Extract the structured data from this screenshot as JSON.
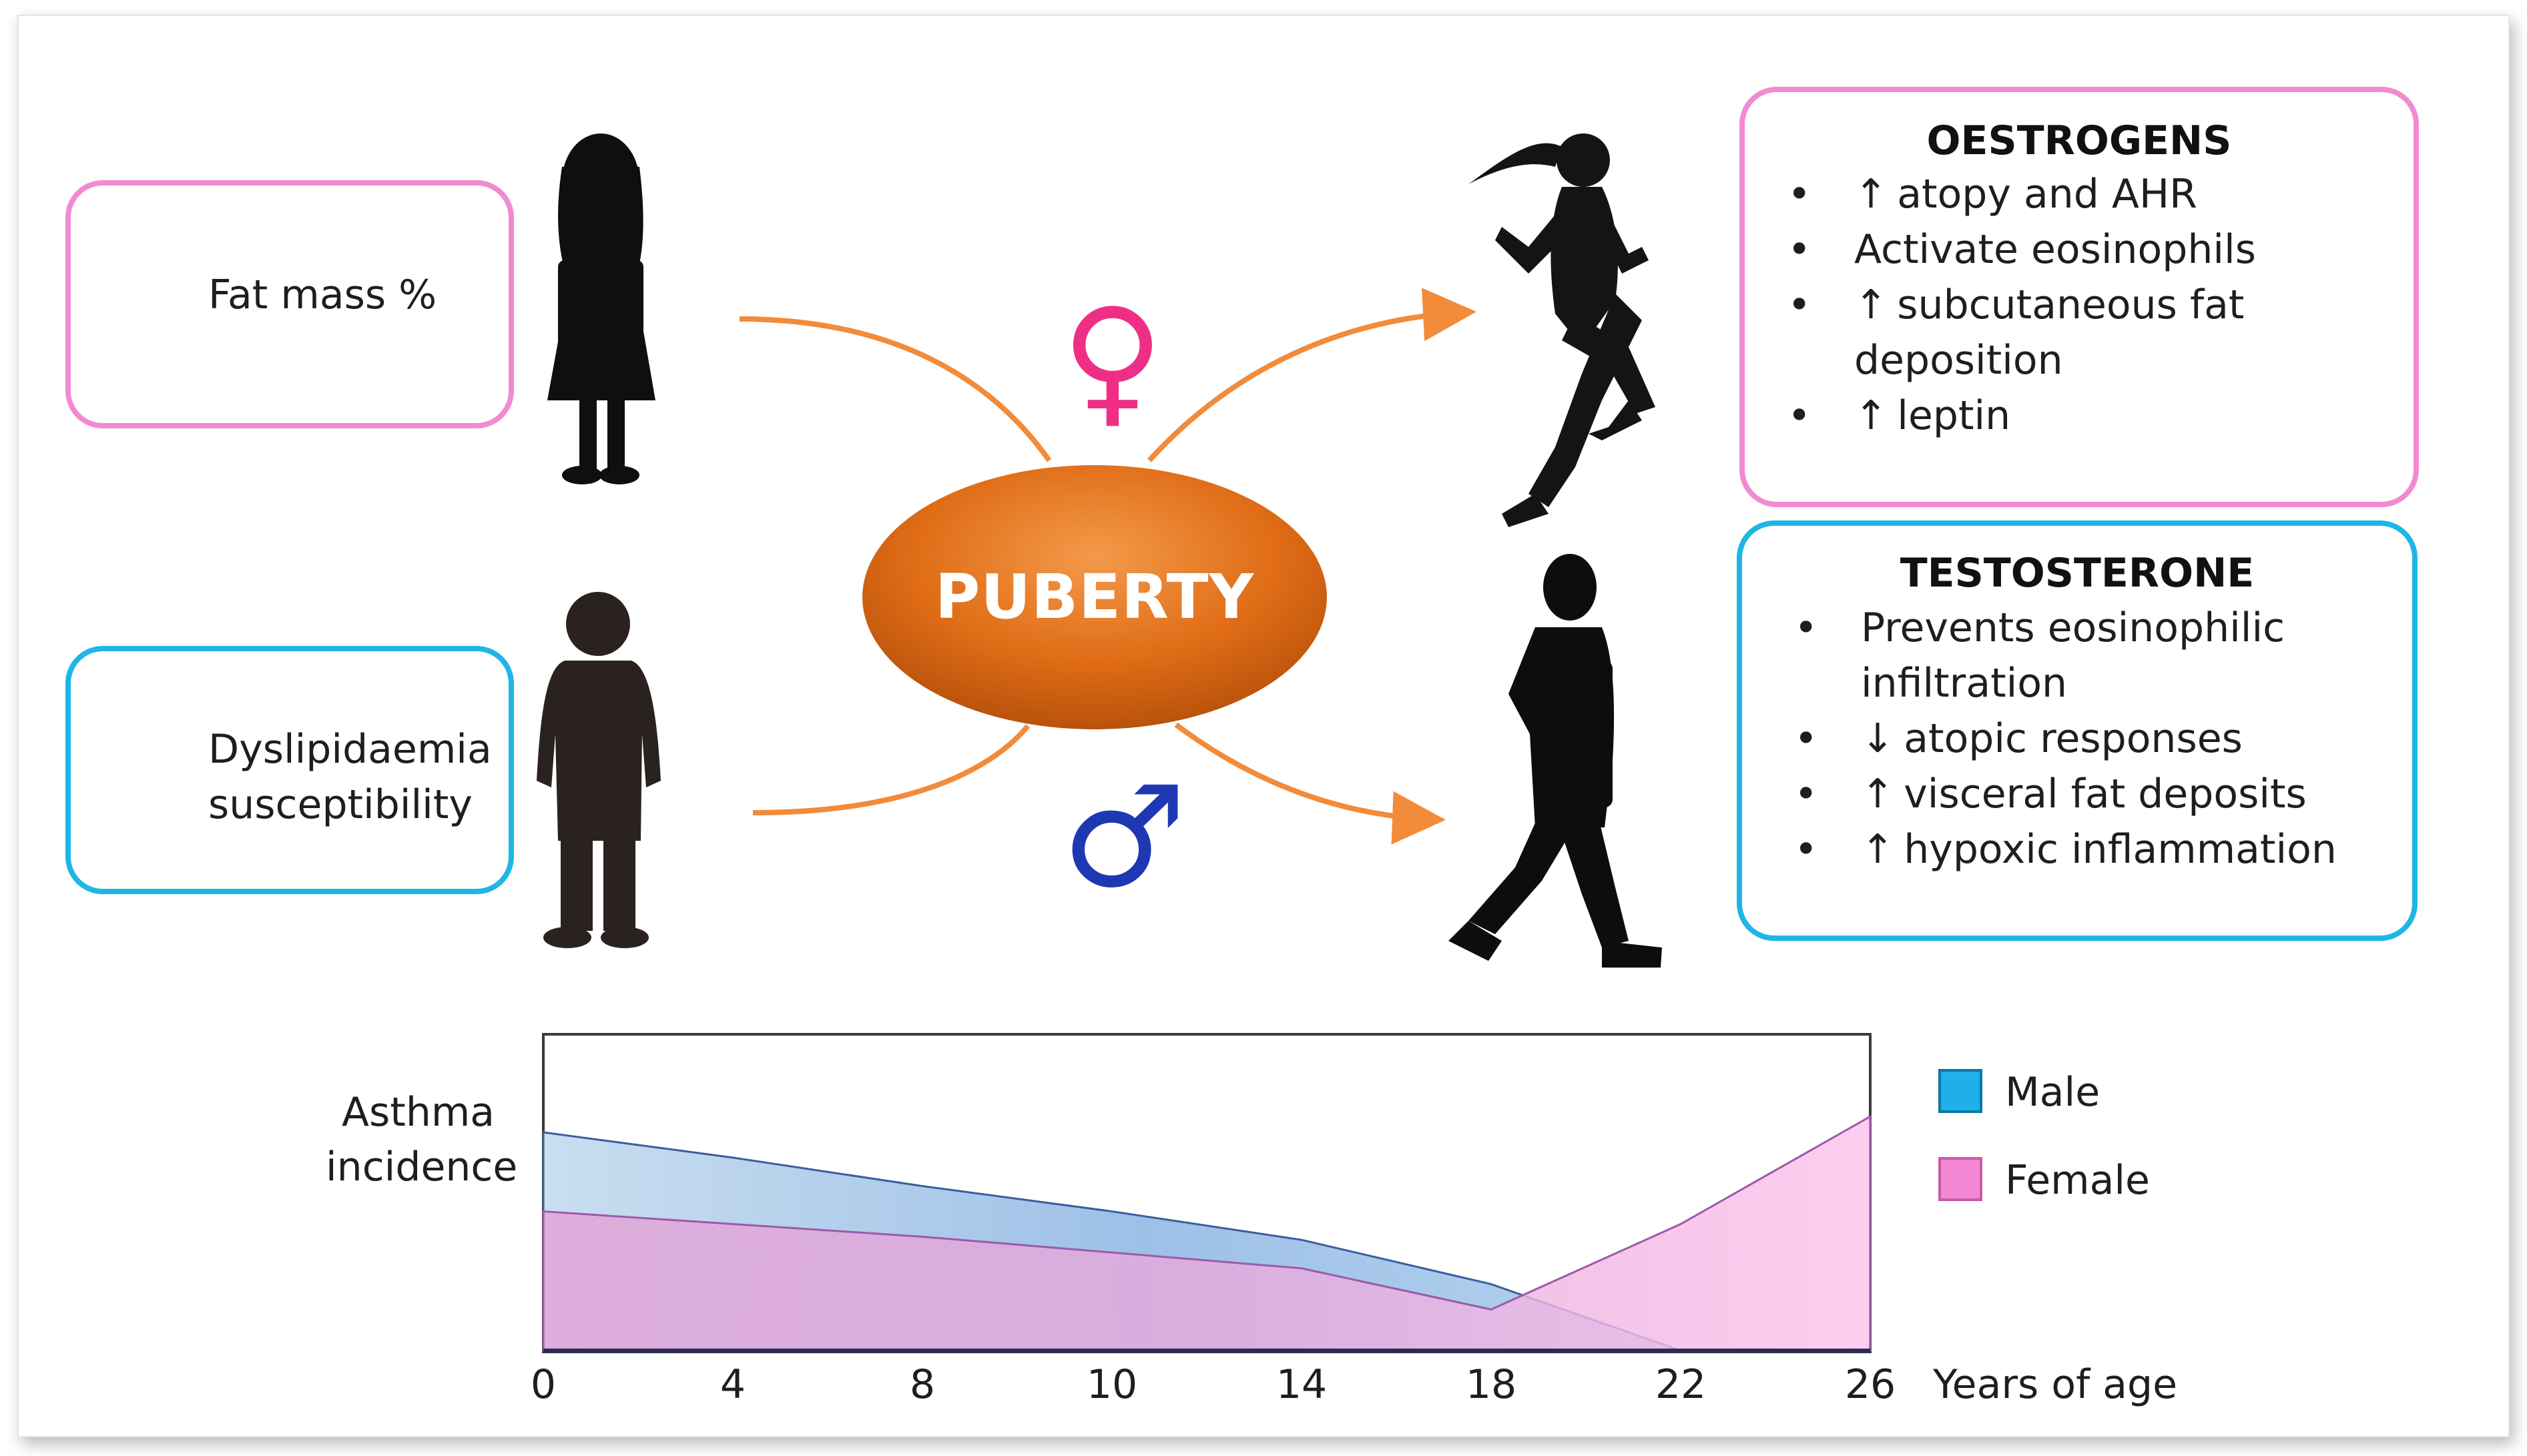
{
  "left_boxes": {
    "fat_mass": {
      "label": "Fat mass %",
      "arrow_icon": "up-arrow-icon",
      "border": "#f28ad1"
    },
    "dyslipidaemia": {
      "line1": "Dyslipidaemia",
      "line2": "susceptibility",
      "arrow_icon": "up-arrow-icon",
      "border": "#1fb6e6"
    }
  },
  "center": {
    "label": "PUBERTY",
    "color": "#e4731a"
  },
  "female_symbol": {
    "glyph": "♀",
    "color": "#ef2f86"
  },
  "male_symbol": {
    "glyph": "♂",
    "color": "#1e38b4"
  },
  "oestrogens": {
    "title": "OESTROGENS",
    "items": [
      {
        "bullet": "•",
        "symbol": "↑",
        "text": "atopy and AHR"
      },
      {
        "bullet": "•",
        "symbol": "",
        "text": "Activate eosinophils"
      },
      {
        "bullet": "•",
        "symbol": "↑",
        "text": "subcutaneous fat",
        "continuation": "deposition"
      },
      {
        "bullet": "•",
        "symbol": "↑",
        "text": "leptin"
      }
    ]
  },
  "testosterone": {
    "title": "TESTOSTERONE",
    "items": [
      {
        "bullet": "•",
        "symbol": "",
        "text": "Prevents eosinophilic",
        "continuation": "infiltration"
      },
      {
        "bullet": "•",
        "symbol": "↓",
        "text": "atopic responses"
      },
      {
        "bullet": "•",
        "symbol": "↑",
        "text": "visceral fat deposits"
      },
      {
        "bullet": "•",
        "symbol": "↑",
        "text": "hypoxic inflammation"
      }
    ]
  },
  "chart_data": {
    "type": "area",
    "ylabel_line1": "Asthma",
    "ylabel_line2": "incidence",
    "xlabel": "Years of age",
    "x_tick_labels": [
      "0",
      "4",
      "8",
      "10",
      "14",
      "18",
      "22",
      "26"
    ],
    "legend_placement": "right",
    "series": [
      {
        "name": "Male",
        "color": "#1fb0e8",
        "values": [
          0.69,
          0.61,
          0.52,
          0.44,
          0.35,
          0.21,
          0.0,
          0.0
        ]
      },
      {
        "name": "Female",
        "color": "#f387d3",
        "values": [
          0.44,
          0.4,
          0.36,
          0.31,
          0.26,
          0.13,
          0.4,
          0.74
        ]
      }
    ]
  }
}
